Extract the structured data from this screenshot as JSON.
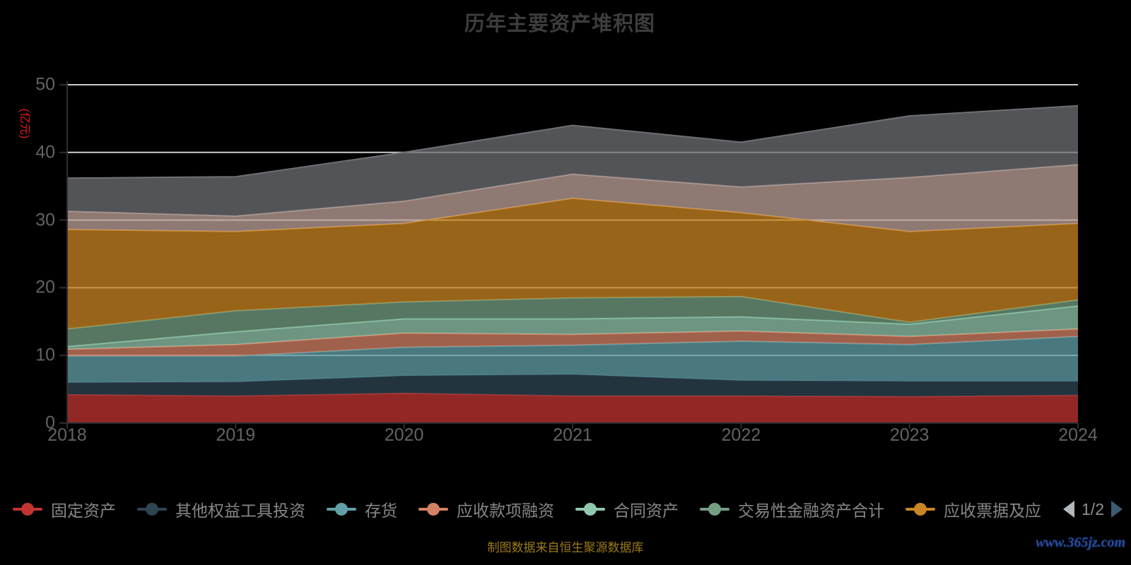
{
  "title": "历年主要资产堆积图",
  "caption": "制图数据来自恒生聚源数据库",
  "watermark": "www.365jz.com",
  "y_axis": {
    "name": "(亿元)",
    "name_color": "#e31a1a",
    "tick_labels": [
      "0",
      "10",
      "20",
      "30",
      "40",
      "50"
    ]
  },
  "x_axis": {
    "tick_labels": [
      "2018",
      "2019",
      "2020",
      "2021",
      "2022",
      "2023",
      "2024"
    ]
  },
  "legend": {
    "items": [
      {
        "label": "固定资产",
        "color": "#c23531"
      },
      {
        "label": "其他权益工具投资",
        "color": "#2f4554"
      },
      {
        "label": "存货",
        "color": "#61a0a8"
      },
      {
        "label": "应收款项融资",
        "color": "#d48265"
      },
      {
        "label": "合同资产",
        "color": "#91c7ae"
      },
      {
        "label": "交易性金融资产合计",
        "color": "#749f83"
      },
      {
        "label": "应收票据及应",
        "color": "#ca8622"
      }
    ],
    "pager": {
      "label": "1/2",
      "prev_color": "#b3b6bb",
      "next_color": "#3d5a73"
    }
  },
  "chart_data": {
    "type": "area",
    "stacked": true,
    "title": "历年主要资产堆积图",
    "categories": [
      "2018",
      "2019",
      "2020",
      "2021",
      "2022",
      "2023",
      "2024"
    ],
    "xlabel": "",
    "ylabel": "(亿元)",
    "ylim": [
      0,
      50
    ],
    "y_ticks": [
      0,
      10,
      20,
      30,
      40,
      50
    ],
    "grid": true,
    "legend_position": "bottom",
    "background": "#000000",
    "gridline_color": "#cccccc",
    "axis_color": "#2e2e2e",
    "series": [
      {
        "name": "固定资产",
        "color": "#c23531",
        "values": [
          4.2,
          4.0,
          4.4,
          4.0,
          4.0,
          3.9,
          4.1
        ]
      },
      {
        "name": "其他权益工具投资",
        "color": "#2f4554",
        "values": [
          1.8,
          2.1,
          2.6,
          3.2,
          2.3,
          2.3,
          2.1
        ]
      },
      {
        "name": "存货",
        "color": "#61a0a8",
        "values": [
          3.9,
          3.8,
          4.2,
          4.3,
          5.8,
          5.4,
          6.6
        ]
      },
      {
        "name": "应收款项融资",
        "color": "#d48265",
        "values": [
          1.0,
          1.7,
          2.1,
          1.6,
          1.5,
          1.2,
          1.1
        ]
      },
      {
        "name": "合同资产",
        "color": "#91c7ae",
        "values": [
          0.4,
          1.9,
          2.1,
          2.3,
          2.1,
          1.8,
          3.4
        ]
      },
      {
        "name": "交易性金融资产合计",
        "color": "#749f83",
        "values": [
          2.6,
          3.1,
          2.5,
          3.1,
          3.0,
          0.3,
          0.9
        ]
      },
      {
        "name": "应收票据及应",
        "color": "#ca8622",
        "values": [
          14.7,
          11.7,
          11.6,
          14.7,
          12.4,
          13.4,
          11.3
        ]
      },
      {
        "name": "",
        "color": "#bda29a",
        "values": [
          2.7,
          2.3,
          3.3,
          3.6,
          3.8,
          8.0,
          8.7
        ]
      },
      {
        "name": "",
        "color": "#6e7074",
        "values": [
          4.9,
          5.8,
          7.2,
          7.2,
          6.6,
          9.1,
          8.7
        ]
      }
    ]
  }
}
